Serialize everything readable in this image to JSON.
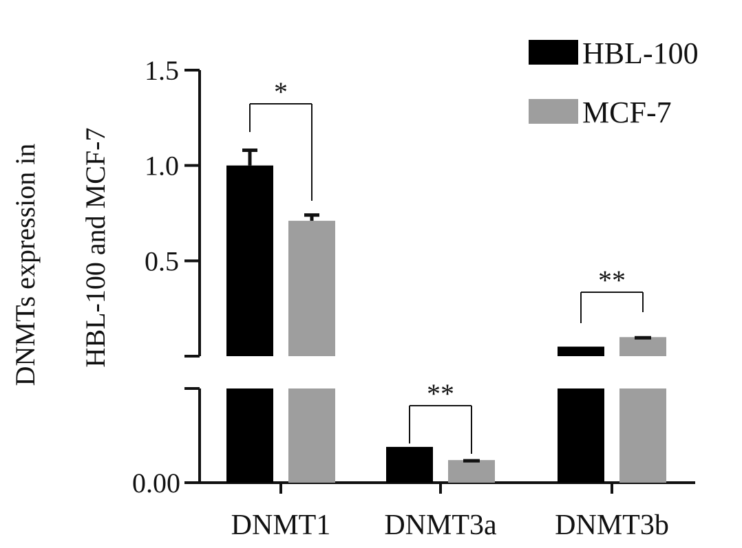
{
  "chart_data": {
    "type": "bar",
    "broken_axis": true,
    "categories": [
      "DNMT1",
      "DNMT3a",
      "DNMT3b"
    ],
    "series": [
      {
        "name": "HBL-100",
        "values": [
          1.0,
          0.038,
          0.05
        ],
        "errors": [
          0.08,
          0.0,
          0.0
        ]
      },
      {
        "name": "MCF-7",
        "values": [
          0.71,
          0.024,
          0.1
        ],
        "errors": [
          0.03,
          0.002,
          0.01
        ]
      }
    ],
    "colors": {
      "HBL-100": "#000000",
      "MCF-7": "#9e9e9e"
    },
    "ylabel_lines": [
      "DNMTs expression in",
      "HBL-100 and MCF-7"
    ],
    "upper_yticks": [
      "0.5",
      "1.0",
      "1.5"
    ],
    "lower_yticks": [
      "0.00"
    ],
    "upper_ylim": [
      0,
      1.5
    ],
    "lower_ylim": [
      0,
      0.1
    ],
    "legend_position": "top-right",
    "significance": [
      "*",
      "**",
      "**"
    ]
  }
}
